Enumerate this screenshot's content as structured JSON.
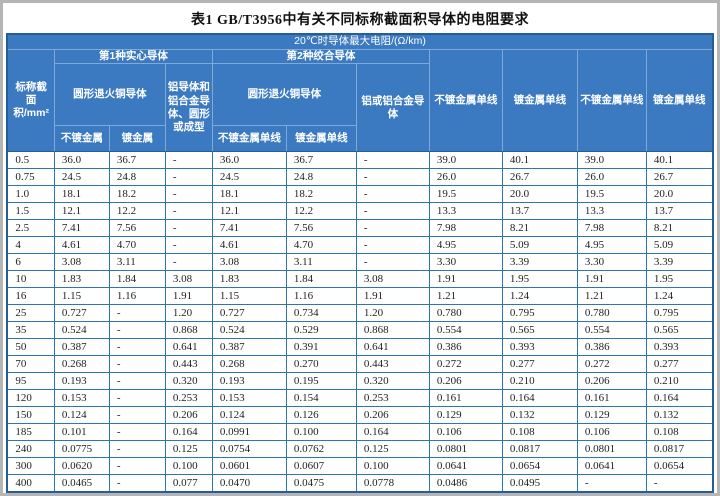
{
  "title": "表1  GB/T3956中有关不同标称截面积导体的电阻要求",
  "table": {
    "top_header": "20℃时导体最大电阻/(Ω/km)",
    "col_cross_section": "标称截面积/mm²",
    "group1": {
      "label": "第1种实心导体",
      "copper": "圆形退火铜导体",
      "copper_cols": [
        "不镀金属",
        "镀金属"
      ],
      "aluminum": "铝导体和铝合金导体、圆形或成型"
    },
    "group2": {
      "label": "第2种绞合导体",
      "copper": "圆形退火铜导体",
      "copper_cols": [
        "不镀金属单线",
        "镀金属单线"
      ],
      "aluminum": "铝或铝合金导体"
    },
    "right_cols": [
      "不镀金属单线",
      "镀金属单线",
      "不镀金属单线",
      "镀金属单线"
    ],
    "rows": [
      [
        "0.5",
        "36.0",
        "36.7",
        "-",
        "36.0",
        "36.7",
        "-",
        "39.0",
        "40.1",
        "39.0",
        "40.1"
      ],
      [
        "0.75",
        "24.5",
        "24.8",
        "-",
        "24.5",
        "24.8",
        "-",
        "26.0",
        "26.7",
        "26.0",
        "26.7"
      ],
      [
        "1.0",
        "18.1",
        "18.2",
        "-",
        "18.1",
        "18.2",
        "-",
        "19.5",
        "20.0",
        "19.5",
        "20.0"
      ],
      [
        "1.5",
        "12.1",
        "12.2",
        "-",
        "12.1",
        "12.2",
        "-",
        "13.3",
        "13.7",
        "13.3",
        "13.7"
      ],
      [
        "2.5",
        "7.41",
        "7.56",
        "-",
        "7.41",
        "7.56",
        "-",
        "7.98",
        "8.21",
        "7.98",
        "8.21"
      ],
      [
        "4",
        "4.61",
        "4.70",
        "-",
        "4.61",
        "4.70",
        "-",
        "4.95",
        "5.09",
        "4.95",
        "5.09"
      ],
      [
        "6",
        "3.08",
        "3.11",
        "-",
        "3.08",
        "3.11",
        "-",
        "3.30",
        "3.39",
        "3.30",
        "3.39"
      ],
      [
        "10",
        "1.83",
        "1.84",
        "3.08",
        "1.83",
        "1.84",
        "3.08",
        "1.91",
        "1.95",
        "1.91",
        "1.95"
      ],
      [
        "16",
        "1.15",
        "1.16",
        "1.91",
        "1.15",
        "1.16",
        "1.91",
        "1.21",
        "1.24",
        "1.21",
        "1.24"
      ],
      [
        "25",
        "0.727",
        "-",
        "1.20",
        "0.727",
        "0.734",
        "1.20",
        "0.780",
        "0.795",
        "0.780",
        "0.795"
      ],
      [
        "35",
        "0.524",
        "-",
        "0.868",
        "0.524",
        "0.529",
        "0.868",
        "0.554",
        "0.565",
        "0.554",
        "0.565"
      ],
      [
        "50",
        "0.387",
        "-",
        "0.641",
        "0.387",
        "0.391",
        "0.641",
        "0.386",
        "0.393",
        "0.386",
        "0.393"
      ],
      [
        "70",
        "0.268",
        "-",
        "0.443",
        "0.268",
        "0.270",
        "0.443",
        "0.272",
        "0.277",
        "0.272",
        "0.277"
      ],
      [
        "95",
        "0.193",
        "-",
        "0.320",
        "0.193",
        "0.195",
        "0.320",
        "0.206",
        "0.210",
        "0.206",
        "0.210"
      ],
      [
        "120",
        "0.153",
        "-",
        "0.253",
        "0.153",
        "0.154",
        "0.253",
        "0.161",
        "0.164",
        "0.161",
        "0.164"
      ],
      [
        "150",
        "0.124",
        "-",
        "0.206",
        "0.124",
        "0.126",
        "0.206",
        "0.129",
        "0.132",
        "0.129",
        "0.132"
      ],
      [
        "185",
        "0.101",
        "-",
        "0.164",
        "0.0991",
        "0.100",
        "0.164",
        "0.106",
        "0.108",
        "0.106",
        "0.108"
      ],
      [
        "240",
        "0.0775",
        "-",
        "0.125",
        "0.0754",
        "0.0762",
        "0.125",
        "0.0801",
        "0.0817",
        "0.0801",
        "0.0817"
      ],
      [
        "300",
        "0.0620",
        "-",
        "0.100",
        "0.0601",
        "0.0607",
        "0.100",
        "0.0641",
        "0.0654",
        "0.0641",
        "0.0654"
      ],
      [
        "400",
        "0.0465",
        "-",
        "0.077",
        "0.0470",
        "0.0475",
        "0.0778",
        "0.0486",
        "0.0495",
        "-",
        "-"
      ]
    ]
  },
  "colors": {
    "header_bg": "#3b7ac1",
    "header_border": "#7fa9d9",
    "grid_border": "#2e75b6",
    "outer_border": "#255e96",
    "header_text": "#ffffff",
    "data_text": "#1f1f1f",
    "frame": "#b5b5b5"
  }
}
